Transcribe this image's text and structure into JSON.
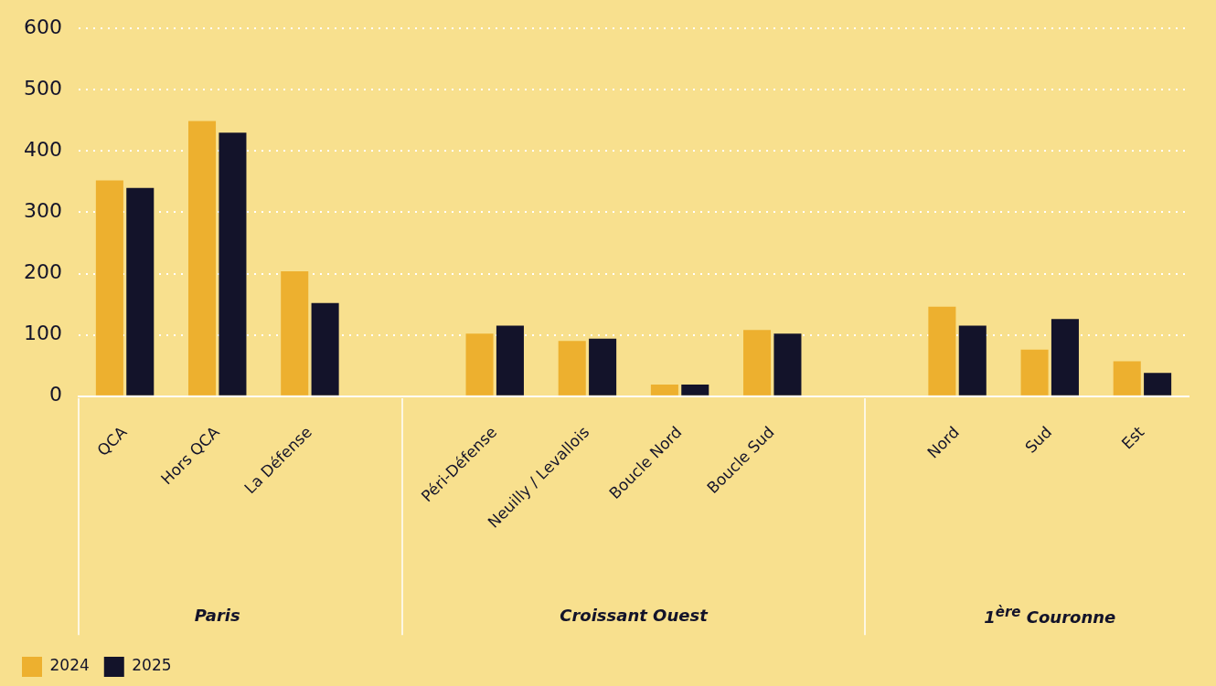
{
  "chart_data": {
    "type": "bar",
    "categories": [
      "QCA",
      "Hors QCA",
      "La Défense",
      null,
      "Péri-Défense",
      "Neuilly / Levallois",
      "Boucle Nord",
      "Boucle Sud",
      null,
      "Nord",
      "Sud",
      "Est"
    ],
    "series": [
      {
        "name": "2024",
        "color": "#edb02f",
        "values": [
          352,
          449,
          204,
          null,
          102,
          90,
          19,
          108,
          null,
          146,
          76,
          57
        ]
      },
      {
        "name": "2025",
        "color": "#13132a",
        "values": [
          340,
          430,
          152,
          null,
          115,
          94,
          19,
          102,
          null,
          115,
          126,
          38
        ]
      }
    ],
    "annotations": [
      "Paris",
      "Croissant Ouest",
      "1$^{ère}$ Couronne"
    ],
    "ylim": [
      0,
      600
    ],
    "yticks": [
      0,
      100,
      200,
      300,
      400,
      500,
      600
    ],
    "grid": "y",
    "legend": "bottom left"
  }
}
